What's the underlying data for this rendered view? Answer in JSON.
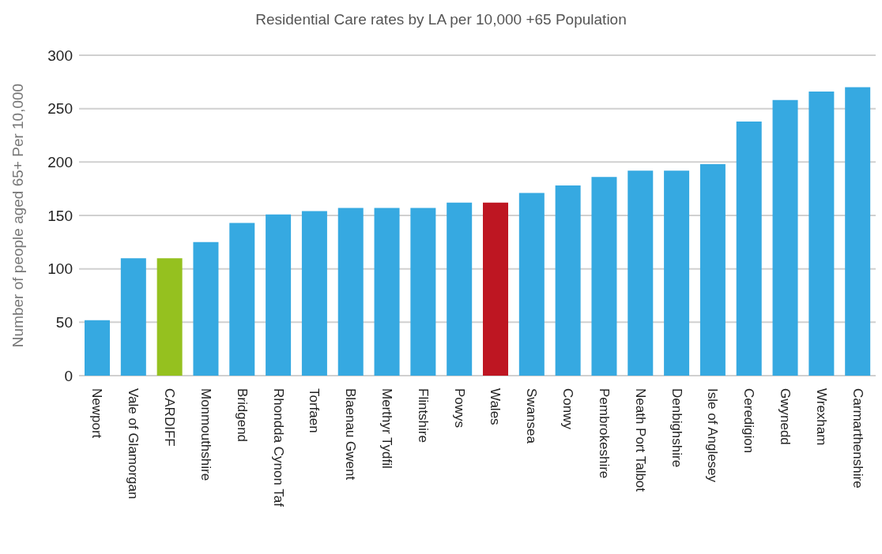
{
  "chart_data": {
    "type": "bar",
    "title": "Residential Care rates by LA per 10,000 +65 Population",
    "ylabel": "Number of people aged  65+ Per 10,000",
    "categories": [
      "Newport",
      "Vale of Glamorgan",
      "CARDIFF",
      "Monmouthshire",
      "Bridgend",
      "Rhondda Cynon Taf",
      "Torfaen",
      "Blaenau Gwent",
      "Merthyr Tydfil",
      "Flintshire",
      "Powys",
      "Wales",
      "Swansea",
      "Conwy",
      "Pembrokeshire",
      "Neath Port Talbot",
      "Denbighshire",
      "Isle of Anglesey",
      "Ceredigion",
      "Gwynedd",
      "Wrexham",
      "Carmarthenshire"
    ],
    "values": [
      52,
      110,
      110,
      125,
      143,
      151,
      154,
      157,
      157,
      157,
      162,
      162,
      171,
      178,
      186,
      192,
      192,
      198,
      238,
      258,
      266,
      270
    ],
    "colors": [
      "#36a9e1",
      "#36a9e1",
      "#95c11f",
      "#36a9e1",
      "#36a9e1",
      "#36a9e1",
      "#36a9e1",
      "#36a9e1",
      "#36a9e1",
      "#36a9e1",
      "#36a9e1",
      "#be1622",
      "#36a9e1",
      "#36a9e1",
      "#36a9e1",
      "#36a9e1",
      "#36a9e1",
      "#36a9e1",
      "#36a9e1",
      "#36a9e1",
      "#36a9e1",
      "#36a9e1"
    ],
    "ylim": [
      0,
      300
    ],
    "yticks": [
      0,
      50,
      100,
      150,
      200,
      250,
      300
    ],
    "grid": "y"
  }
}
